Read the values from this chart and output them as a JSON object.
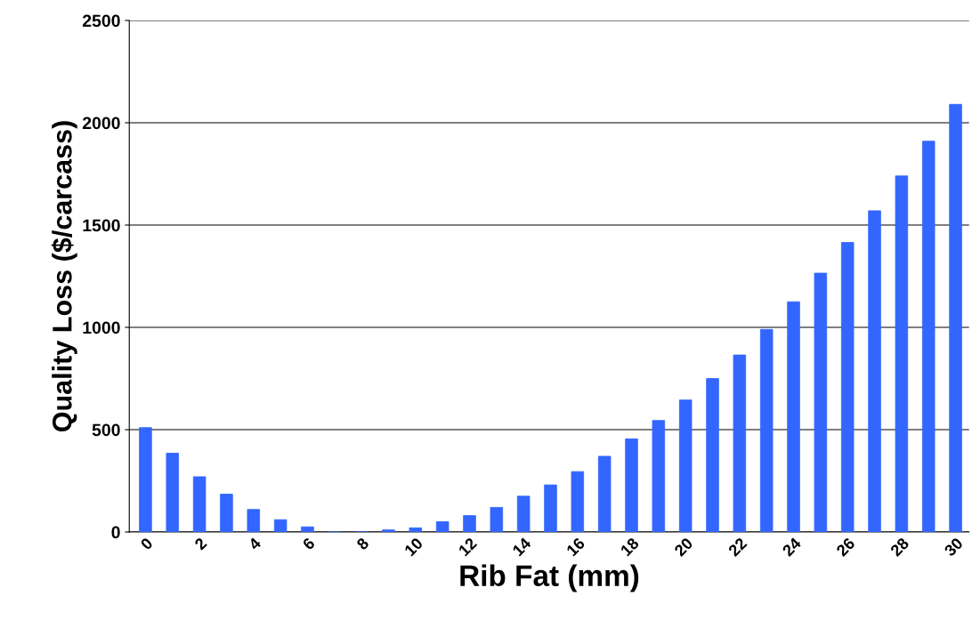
{
  "chart_data": {
    "type": "bar",
    "xlabel": "Rib Fat (mm)",
    "ylabel": "Quality Loss ($/carcass)",
    "categories": [
      "0",
      null,
      "2",
      null,
      "4",
      null,
      "6",
      null,
      "8",
      null,
      "10",
      null,
      "12",
      null,
      "14",
      null,
      "16",
      null,
      "18",
      null,
      "20",
      null,
      "22",
      null,
      "24",
      null,
      "26",
      null,
      "28",
      null,
      "30"
    ],
    "values": [
      510,
      385,
      270,
      185,
      110,
      60,
      25,
      0,
      0,
      10,
      20,
      50,
      80,
      120,
      175,
      230,
      295,
      370,
      455,
      545,
      645,
      750,
      865,
      990,
      1125,
      1265,
      1415,
      1570,
      1740,
      1910,
      2090
    ],
    "color": "#3366ff",
    "ylim": [
      0,
      2500
    ],
    "yticks": [
      0,
      500,
      1000,
      1500,
      2000,
      2500
    ],
    "grid": "y"
  }
}
